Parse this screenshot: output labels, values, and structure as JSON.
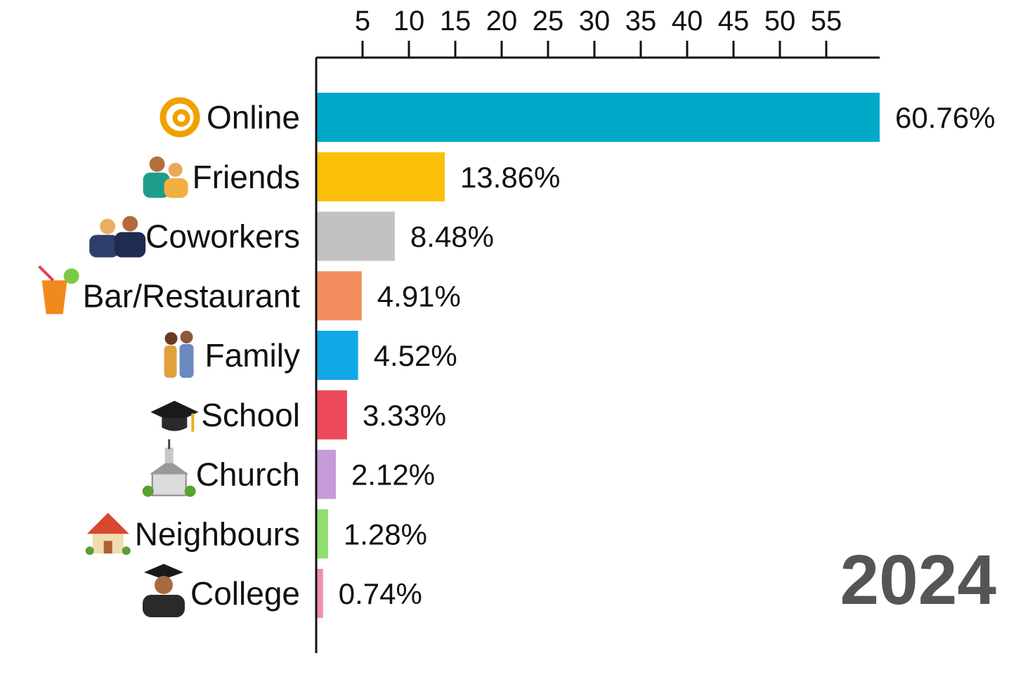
{
  "chart_data": {
    "type": "bar",
    "orientation": "horizontal",
    "categories": [
      "Online",
      "Friends",
      "Coworkers",
      "Bar/Restaurant",
      "Family",
      "School",
      "Church",
      "Neighbours",
      "College"
    ],
    "values": [
      60.76,
      13.86,
      8.48,
      4.91,
      4.52,
      3.33,
      2.12,
      1.28,
      0.74
    ],
    "value_labels": [
      "60.76%",
      "13.86%",
      "8.48%",
      "4.91%",
      "4.52%",
      "3.33%",
      "2.12%",
      "1.28%",
      "0.74%"
    ],
    "colors": [
      "#00a9c8",
      "#fbbf0a",
      "#c2c2c2",
      "#f58e5f",
      "#11a8e8",
      "#ec4a5c",
      "#c79ad9",
      "#8fde6e",
      "#ee8fb2"
    ],
    "icons": [
      "at-sign-icon",
      "friends-icon",
      "coworkers-icon",
      "drink-icon",
      "family-icon",
      "graduation-cap-icon",
      "church-icon",
      "house-icon",
      "graduate-icon"
    ],
    "xticks": [
      5,
      10,
      15,
      20,
      25,
      30,
      35,
      40,
      45,
      50,
      55
    ],
    "xlim": [
      0,
      60.76
    ],
    "axis_position": "top",
    "grid": false,
    "year": "2024"
  }
}
